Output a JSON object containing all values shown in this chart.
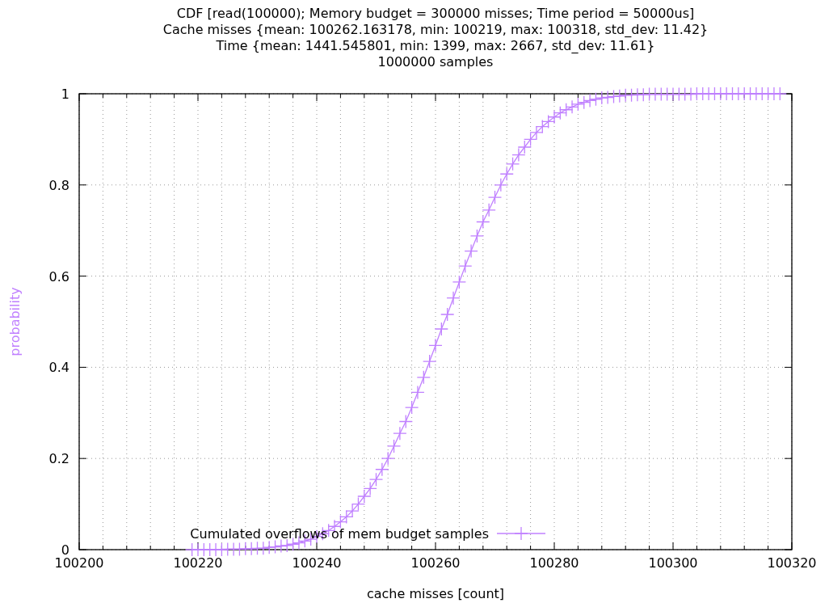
{
  "chart_data": {
    "type": "line",
    "title": "CDF [read(100000); Memory budget = 300000 misses; Time period = 50000us]\nCache misses {mean: 100262.163178, min: 100219, max: 100318, std_dev: 11.42}\nTime {mean: 1441.545801, min: 1399, max: 2667, std_dev: 11.61}\n1000000 samples",
    "xlabel": "cache misses [count]",
    "ylabel": "probability",
    "x": [
      100219,
      100220,
      100221,
      100222,
      100223,
      100224,
      100225,
      100226,
      100227,
      100228,
      100229,
      100230,
      100231,
      100232,
      100233,
      100234,
      100235,
      100236,
      100237,
      100238,
      100239,
      100240,
      100241,
      100242,
      100243,
      100244,
      100245,
      100246,
      100247,
      100248,
      100249,
      100250,
      100251,
      100252,
      100253,
      100254,
      100255,
      100256,
      100257,
      100258,
      100259,
      100260,
      100261,
      100262,
      100263,
      100264,
      100265,
      100266,
      100267,
      100268,
      100269,
      100270,
      100271,
      100272,
      100273,
      100274,
      100275,
      100276,
      100277,
      100278,
      100279,
      100280,
      100281,
      100282,
      100283,
      100284,
      100285,
      100286,
      100287,
      100288,
      100289,
      100290,
      100291,
      100292,
      100293,
      100294,
      100295,
      100296,
      100297,
      100298,
      100299,
      100300,
      100301,
      100302,
      100303,
      100304,
      100305,
      100306,
      100307,
      100308,
      100309,
      100310,
      100311,
      100312,
      100313,
      100314,
      100315,
      100316,
      100317,
      100318
    ],
    "series": [
      {
        "name": "Cumulated overflows of mem budget samples",
        "color": "#c080ff",
        "values": [
          0,
          0,
          0,
          0,
          0,
          0,
          0.001,
          0.001,
          0.001,
          0.002,
          0.002,
          0.003,
          0.003,
          0.005,
          0.006,
          0.008,
          0.009,
          0.012,
          0.015,
          0.019,
          0.023,
          0.029,
          0.035,
          0.042,
          0.051,
          0.061,
          0.072,
          0.085,
          0.1,
          0.117,
          0.134,
          0.154,
          0.176,
          0.2,
          0.227,
          0.255,
          0.281,
          0.312,
          0.345,
          0.378,
          0.413,
          0.448,
          0.484,
          0.516,
          0.552,
          0.587,
          0.622,
          0.655,
          0.688,
          0.719,
          0.745,
          0.773,
          0.8,
          0.824,
          0.846,
          0.866,
          0.883,
          0.9,
          0.915,
          0.928,
          0.939,
          0.949,
          0.958,
          0.965,
          0.971,
          0.977,
          0.981,
          0.985,
          0.988,
          0.991,
          0.992,
          0.994,
          0.995,
          0.997,
          0.997,
          0.998,
          0.998,
          0.999,
          0.999,
          0.999,
          0.999,
          0.999,
          0.999,
          0.999,
          0.999,
          1,
          1,
          1,
          1,
          1,
          1,
          1,
          1,
          1,
          1,
          1,
          1,
          1,
          1,
          1
        ]
      }
    ],
    "xlim": [
      100200,
      100320
    ],
    "xticks": [
      100200,
      {
        "value": 100204,
        "label": null
      },
      {
        "value": 100208,
        "label": null
      },
      {
        "value": 100212,
        "label": null
      },
      {
        "value": 100216,
        "label": null
      },
      100220,
      {
        "value": 100224,
        "label": null
      },
      {
        "value": 100228,
        "label": null
      },
      {
        "value": 100232,
        "label": null
      },
      {
        "value": 100236,
        "label": null
      },
      100240,
      {
        "value": 100244,
        "label": null
      },
      {
        "value": 100248,
        "label": null
      },
      {
        "value": 100252,
        "label": null
      },
      {
        "value": 100256,
        "label": null
      },
      100260,
      {
        "value": 100264,
        "label": null
      },
      {
        "value": 100268,
        "label": null
      },
      {
        "value": 100272,
        "label": null
      },
      {
        "value": 100276,
        "label": null
      },
      100280,
      {
        "value": 100284,
        "label": null
      },
      {
        "value": 100288,
        "label": null
      },
      {
        "value": 100292,
        "label": null
      },
      {
        "value": 100296,
        "label": null
      },
      100300,
      {
        "value": 100304,
        "label": null
      },
      {
        "value": 100308,
        "label": null
      },
      {
        "value": 100312,
        "label": null
      },
      {
        "value": 100316,
        "label": null
      },
      100320
    ],
    "ylim": [
      0,
      1
    ],
    "yticks": [
      0,
      0.2,
      0.4,
      0.6,
      0.8,
      1
    ],
    "grid": true,
    "legend": "bottom",
    "marker": "cross",
    "line_style": "solid"
  }
}
